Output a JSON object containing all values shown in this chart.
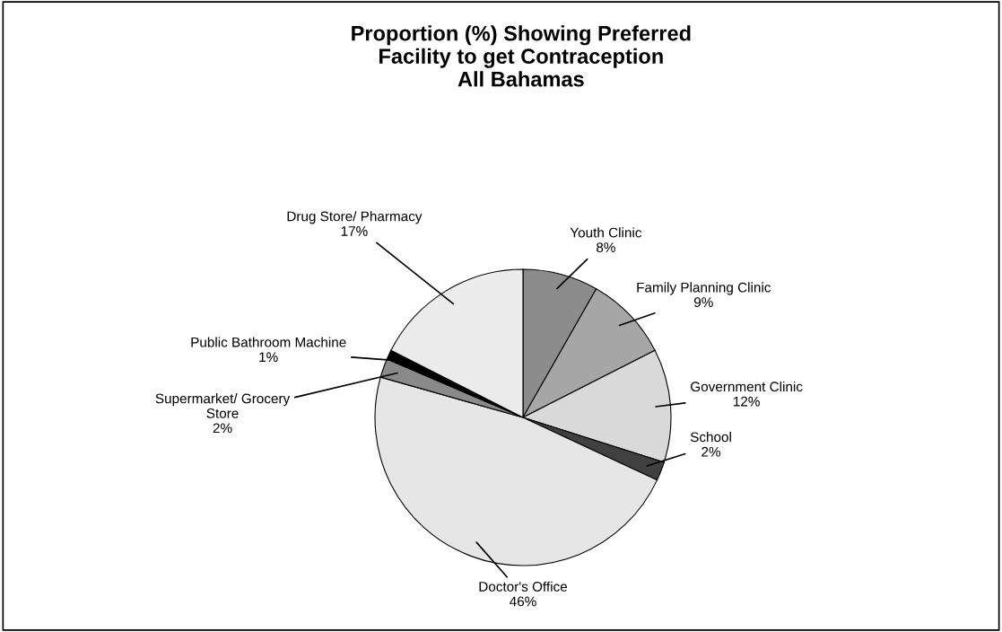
{
  "chart_data": {
    "type": "pie",
    "title": "Proportion (%) Showing Preferred\nFacility to get Contraception\nAll Bahamas",
    "categories": [
      "Youth Clinic",
      "Family Planning Clinic",
      "Government Clinic",
      "School",
      "Doctor's Office",
      "Supermarket/ Grocery\nStore",
      "Public Bathroom Machine",
      "Drug Store/ Pharmacy"
    ],
    "values": [
      8,
      9,
      12,
      2,
      46,
      2,
      1,
      17
    ],
    "value_labels": [
      "8%",
      "9%",
      "12%",
      "2%",
      "46%",
      "2%",
      "1%",
      "17%"
    ],
    "colors": [
      "#8c8c8c",
      "#a6a6a6",
      "#d9d9d9",
      "#404040",
      "#e6e6e6",
      "#8a8a8a",
      "#000000",
      "#ececec"
    ],
    "legend": false
  }
}
